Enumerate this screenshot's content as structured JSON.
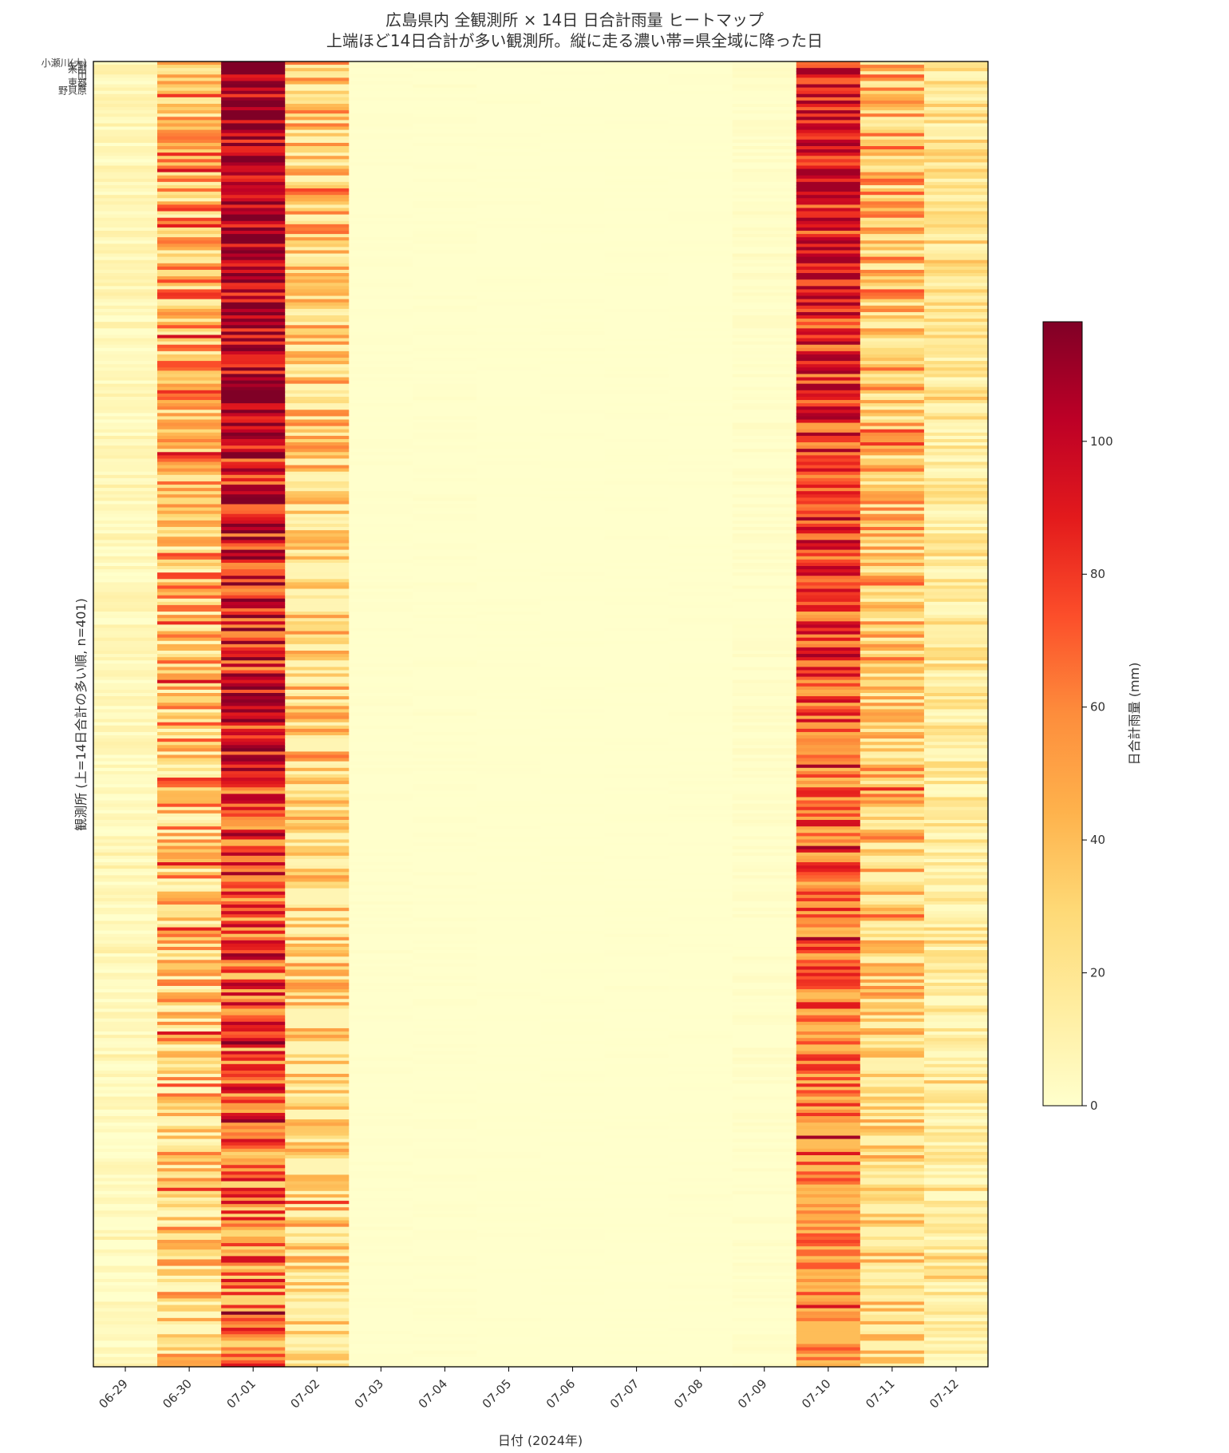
{
  "chart_data": {
    "type": "heatmap",
    "title": "広島県内 全観測所 × 14日 日合計雨量 ヒートマップ",
    "subtitle": "上端ほど14日合計が多い観測所。縦に走る濃い帯=県全域に降った日",
    "xlabel": "日付 (2024年)",
    "ylabel": "観測所 (上=14日合計の多い順, n=401)",
    "categories": [
      "06-29",
      "06-30",
      "07-01",
      "07-02",
      "07-03",
      "07-04",
      "07-05",
      "07-06",
      "07-07",
      "07-08",
      "07-09",
      "07-10",
      "07-11",
      "07-12"
    ],
    "station_count": 401,
    "station_labels_visible": [
      "小瀬川(大)",
      "矢野",
      "米山",
      "中",
      "山",
      "野貝原",
      "東部",
      "分"
    ],
    "colorbar": {
      "label": "日合計雨量 (mm)",
      "colormap": "YlOrRd",
      "range": [
        0,
        118
      ],
      "ticks": [
        0,
        20,
        40,
        60,
        80,
        100
      ],
      "colors": [
        "#ffffcc",
        "#ffeda0",
        "#fed976",
        "#feb24c",
        "#fd8d3c",
        "#fc4e2a",
        "#e31a1c",
        "#bd0026",
        "#800026"
      ]
    },
    "series": [
      {
        "date": "06-29",
        "typical_mm": 5,
        "min_mm": 0,
        "max_mm": 15
      },
      {
        "date": "06-30",
        "typical_mm": 35,
        "min_mm": 5,
        "max_mm": 95
      },
      {
        "date": "07-01",
        "typical_mm": 85,
        "min_mm": 30,
        "max_mm": 118
      },
      {
        "date": "07-02",
        "typical_mm": 25,
        "min_mm": 8,
        "max_mm": 85
      },
      {
        "date": "07-03",
        "typical_mm": 0,
        "min_mm": 0,
        "max_mm": 2
      },
      {
        "date": "07-04",
        "typical_mm": 0,
        "min_mm": 0,
        "max_mm": 2
      },
      {
        "date": "07-05",
        "typical_mm": 0,
        "min_mm": 0,
        "max_mm": 1
      },
      {
        "date": "07-06",
        "typical_mm": 0,
        "min_mm": 0,
        "max_mm": 1
      },
      {
        "date": "07-07",
        "typical_mm": 0,
        "min_mm": 0,
        "max_mm": 1
      },
      {
        "date": "07-08",
        "typical_mm": 0,
        "min_mm": 0,
        "max_mm": 1
      },
      {
        "date": "07-09",
        "typical_mm": 1,
        "min_mm": 0,
        "max_mm": 5
      },
      {
        "date": "07-10",
        "typical_mm": 70,
        "min_mm": 40,
        "max_mm": 110
      },
      {
        "date": "07-11",
        "typical_mm": 30,
        "min_mm": 10,
        "max_mm": 85
      },
      {
        "date": "07-12",
        "typical_mm": 15,
        "min_mm": 3,
        "max_mm": 40
      }
    ],
    "grid": false
  }
}
